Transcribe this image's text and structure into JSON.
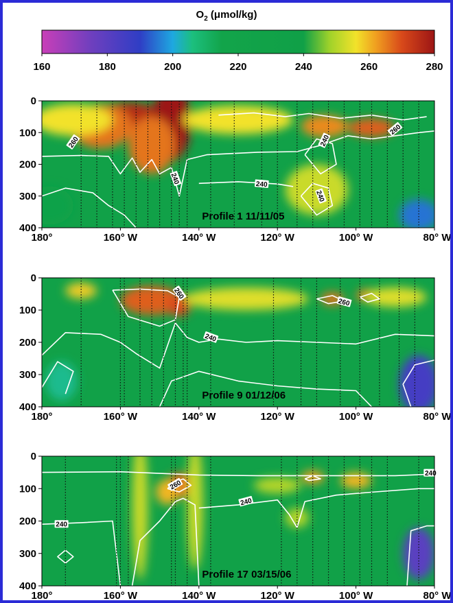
{
  "chart_data": {
    "type": "heatmap",
    "colorbar": {
      "label_main": "O",
      "label_sub": "2",
      "label_unit": " (μmol/kg)",
      "ticks": [
        160,
        180,
        200,
        220,
        240,
        260,
        280
      ],
      "range": [
        160,
        280
      ]
    },
    "colors": {
      "frame": "#2b2bd6",
      "stops": [
        {
          "v": 160,
          "c": "#c93fb8"
        },
        {
          "v": 175,
          "c": "#6f3fbe"
        },
        {
          "v": 190,
          "c": "#2f3ec5"
        },
        {
          "v": 200,
          "c": "#1ea8e0"
        },
        {
          "v": 206,
          "c": "#1cbf7e"
        },
        {
          "v": 215,
          "c": "#12a44a"
        },
        {
          "v": 240,
          "c": "#10a047"
        },
        {
          "v": 248,
          "c": "#a0d22a"
        },
        {
          "v": 256,
          "c": "#f2e22a"
        },
        {
          "v": 262,
          "c": "#f0a020"
        },
        {
          "v": 270,
          "c": "#d8491a"
        },
        {
          "v": 280,
          "c": "#9c1515"
        }
      ]
    },
    "x_ticks": [
      "180°",
      "160° W",
      "140° W",
      "120° W",
      "100° W",
      "80° W"
    ],
    "y_ticks": [
      "0",
      "100",
      "200",
      "300",
      "400"
    ],
    "x_range": [
      -180,
      -80
    ],
    "y_range": [
      0,
      400
    ],
    "panels": [
      {
        "title": "Profile 1  11/11/05",
        "contour_labels": [
          "260",
          "240",
          "240",
          "240",
          "240",
          "260"
        ],
        "stations": [
          -170,
          -166,
          -162,
          -159,
          -156,
          -153,
          -150,
          -147,
          -145,
          -143,
          -137,
          -131,
          -124,
          -120,
          -115,
          -111,
          -107,
          -103,
          -99,
          -96,
          -92,
          -88,
          -84
        ],
        "blobs": [
          {
            "lon": -158,
            "depth": 60,
            "v": 276,
            "rx": 10,
            "ry": 55
          },
          {
            "lon": -147,
            "depth": 70,
            "v": 280,
            "rx": 5,
            "ry": 120
          },
          {
            "lon": -165,
            "depth": 80,
            "v": 266,
            "rx": 8,
            "ry": 70
          },
          {
            "lon": -152,
            "depth": 140,
            "v": 266,
            "rx": 6,
            "ry": 90
          },
          {
            "lon": -172,
            "depth": 60,
            "v": 256,
            "rx": 10,
            "ry": 50
          },
          {
            "lon": -130,
            "depth": 60,
            "v": 256,
            "rx": 14,
            "ry": 45
          },
          {
            "lon": -108,
            "depth": 80,
            "v": 264,
            "rx": 6,
            "ry": 35
          },
          {
            "lon": -96,
            "depth": 85,
            "v": 268,
            "rx": 6,
            "ry": 30
          },
          {
            "lon": -110,
            "depth": 280,
            "v": 252,
            "rx": 8,
            "ry": 80
          },
          {
            "lon": -84,
            "depth": 360,
            "v": 195,
            "rx": 5,
            "ry": 50
          },
          {
            "lon": -178,
            "depth": 330,
            "v": 230,
            "rx": 6,
            "ry": 60
          }
        ]
      },
      {
        "title": "Profile 9  01/12/06",
        "contour_labels": [
          "260",
          "240",
          "260"
        ],
        "stations": [
          -170,
          -160,
          -159,
          -155,
          -152,
          -149,
          -146,
          -144,
          -143,
          -137,
          -121,
          -114,
          -110,
          -104,
          -99,
          -94,
          -89,
          -85
        ],
        "blobs": [
          {
            "lon": -152,
            "depth": 70,
            "v": 268,
            "rx": 8,
            "ry": 45
          },
          {
            "lon": -145,
            "depth": 85,
            "v": 270,
            "rx": 3,
            "ry": 35
          },
          {
            "lon": -170,
            "depth": 40,
            "v": 258,
            "rx": 4,
            "ry": 25
          },
          {
            "lon": -128,
            "depth": 65,
            "v": 254,
            "rx": 16,
            "ry": 35
          },
          {
            "lon": -106,
            "depth": 65,
            "v": 266,
            "rx": 3,
            "ry": 20
          },
          {
            "lon": -97,
            "depth": 55,
            "v": 266,
            "rx": 3,
            "ry": 20
          },
          {
            "lon": -90,
            "depth": 60,
            "v": 254,
            "rx": 8,
            "ry": 30
          },
          {
            "lon": -84,
            "depth": 330,
            "v": 185,
            "rx": 5,
            "ry": 90
          },
          {
            "lon": -175,
            "depth": 320,
            "v": 205,
            "rx": 4,
            "ry": 60
          }
        ]
      },
      {
        "title": "Profile 17  03/15/06",
        "contour_labels": [
          "260",
          "240",
          "240",
          "240"
        ],
        "stations": [
          -174,
          -161,
          -160,
          -158,
          -147,
          -146,
          -143,
          -137,
          -119,
          -115,
          -111,
          -107,
          -103,
          -99,
          -96,
          -92,
          -84
        ],
        "blobs": [
          {
            "lon": -145,
            "depth": 90,
            "v": 268,
            "rx": 3,
            "ry": 40
          },
          {
            "lon": -148,
            "depth": 110,
            "v": 260,
            "rx": 3,
            "ry": 40
          },
          {
            "lon": -141,
            "depth": 150,
            "v": 252,
            "rx": 2,
            "ry": 200
          },
          {
            "lon": -155,
            "depth": 160,
            "v": 252,
            "rx": 2,
            "ry": 220
          },
          {
            "lon": -111,
            "depth": 65,
            "v": 262,
            "rx": 3,
            "ry": 20
          },
          {
            "lon": -100,
            "depth": 75,
            "v": 260,
            "rx": 4,
            "ry": 25
          },
          {
            "lon": -120,
            "depth": 90,
            "v": 250,
            "rx": 6,
            "ry": 25
          },
          {
            "lon": -115,
            "depth": 190,
            "v": 250,
            "rx": 3,
            "ry": 30
          },
          {
            "lon": -84,
            "depth": 300,
            "v": 180,
            "rx": 4,
            "ry": 80
          }
        ]
      }
    ]
  }
}
